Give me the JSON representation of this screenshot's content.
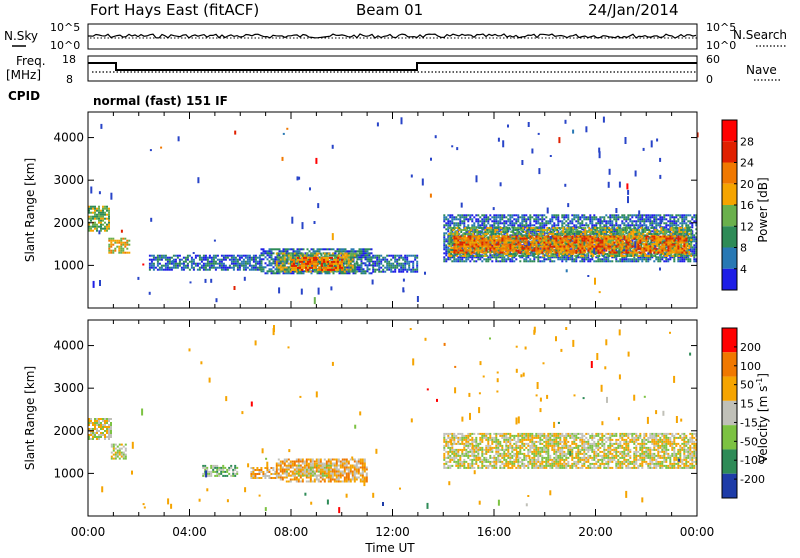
{
  "header": {
    "station": "Fort Hays East (fitACF)",
    "beam": "Beam 01",
    "date": "24/Jan/2014"
  },
  "noise_panel": {
    "left_label": "N.Sky",
    "right_label": "N.Search",
    "left_ticks": [
      "10^5",
      "10^0"
    ],
    "right_ticks": [
      "10^5",
      "10^0"
    ]
  },
  "freq_panel": {
    "left_label_1": "Freq.",
    "left_label_2": "[MHz]",
    "right_label": "Nave",
    "left_ticks": [
      "18",
      "8"
    ],
    "right_ticks": [
      "60",
      "0"
    ]
  },
  "cpid": {
    "label": "CPID",
    "mode": "normal (fast) 151 IF"
  },
  "colors": {
    "power": [
      "#1e1ee6",
      "#2878b4",
      "#2e8b57",
      "#6ab04c",
      "#f5a400",
      "#f07800",
      "#e02000",
      "#ff0000"
    ],
    "velocity": [
      "#1e3ca8",
      "#2e8b57",
      "#7cc242",
      "#c0c0b8",
      "#f5a400",
      "#f07800",
      "#ff0000"
    ],
    "power_scatter": "#2844c8",
    "velocity_ground": "#c0c0b8",
    "velocity_orange": "#f5a400",
    "velocity_green": "#7cc242"
  },
  "chart_data": {
    "type": "heatmap",
    "x_ticks": [
      "00:00",
      "04:00",
      "08:00",
      "12:00",
      "16:00",
      "20:00",
      "00:00"
    ],
    "xlabel": "Time UT",
    "xlim": [
      0,
      24
    ],
    "ylim": [
      0,
      4600
    ],
    "y_ticks": [
      1000,
      2000,
      3000,
      4000
    ],
    "panels": [
      {
        "name": "power",
        "ylabel": "Slant Range [km]",
        "colorbar_label": "Power [dB]",
        "colorbar_ticks": [
          4,
          8,
          12,
          16,
          20,
          24,
          28
        ],
        "regions": [
          {
            "t0": 0.0,
            "t1": 0.8,
            "r0": 1800,
            "r1": 2400,
            "level": 3
          },
          {
            "t0": 0.8,
            "t1": 1.6,
            "r0": 1300,
            "r1": 1650,
            "level": 4
          },
          {
            "t0": 2.4,
            "t1": 6.8,
            "r0": 900,
            "r1": 1250,
            "level": 1
          },
          {
            "t0": 6.8,
            "t1": 11.2,
            "r0": 800,
            "r1": 1400,
            "level": 1
          },
          {
            "t0": 7.4,
            "t1": 10.6,
            "r0": 850,
            "r1": 1300,
            "level": 3
          },
          {
            "t0": 8.0,
            "t1": 10.0,
            "r0": 900,
            "r1": 1200,
            "level": 5
          },
          {
            "t0": 11.2,
            "t1": 13.0,
            "r0": 850,
            "r1": 1250,
            "level": 1
          },
          {
            "t0": 14.0,
            "t1": 24.0,
            "r0": 1100,
            "r1": 2200,
            "level": 1
          },
          {
            "t0": 14.2,
            "t1": 23.8,
            "r0": 1200,
            "r1": 1900,
            "level": 3
          },
          {
            "t0": 14.4,
            "t1": 23.6,
            "r0": 1300,
            "r1": 1700,
            "level": 5
          }
        ]
      },
      {
        "name": "velocity",
        "ylabel": "Slant Range [km]",
        "colorbar_label": "Velocity [m s",
        "colorbar_label_sup": "-1",
        "colorbar_label_end": "]",
        "colorbar_ticks": [
          "200",
          "100",
          "50",
          "15",
          "-15",
          "-50",
          "-100",
          "-200"
        ],
        "regions": [
          {
            "t0": 0.0,
            "t1": 0.9,
            "r0": 1800,
            "r1": 2300,
            "level": 3
          },
          {
            "t0": 0.9,
            "t1": 1.5,
            "r0": 1350,
            "r1": 1700,
            "level": 3
          },
          {
            "t0": 4.5,
            "t1": 5.9,
            "r0": 950,
            "r1": 1200,
            "level": 2
          },
          {
            "t0": 6.4,
            "t1": 7.4,
            "r0": 900,
            "r1": 1150,
            "level": 4
          },
          {
            "t0": 7.4,
            "t1": 11.0,
            "r0": 800,
            "r1": 1350,
            "level": 4
          },
          {
            "t0": 7.8,
            "t1": 9.6,
            "r0": 950,
            "r1": 1250,
            "level": 3
          },
          {
            "t0": 14.0,
            "t1": 24.0,
            "r0": 1150,
            "r1": 1950,
            "level": 3
          }
        ]
      }
    ]
  }
}
